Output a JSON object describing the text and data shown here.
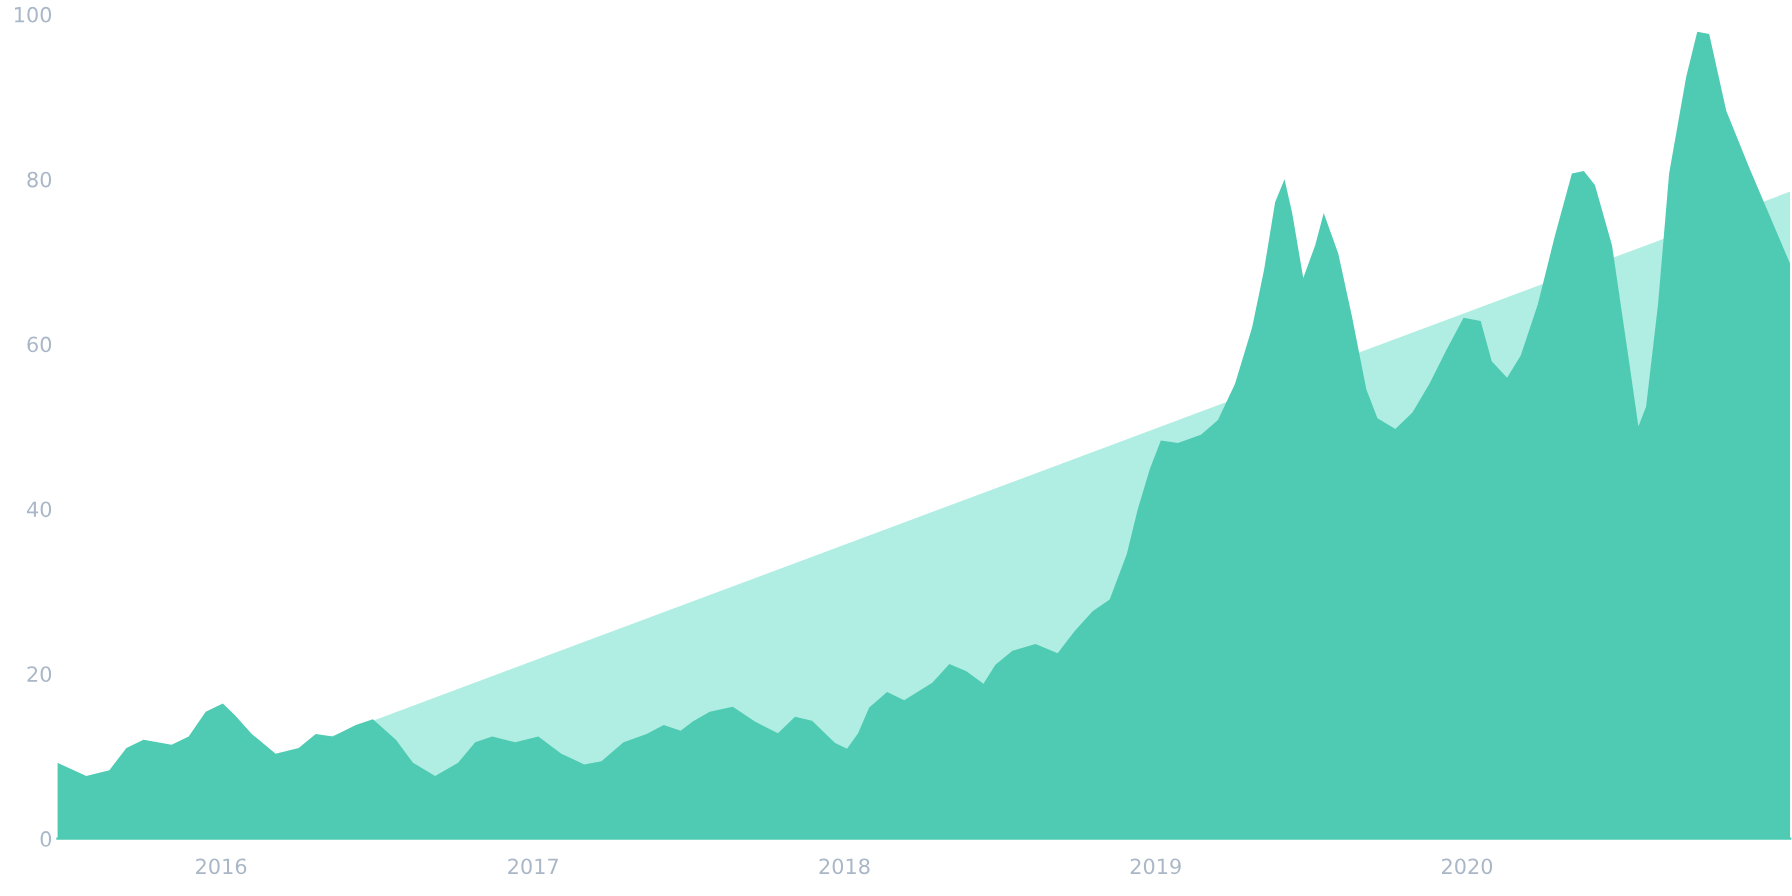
{
  "chart_data": {
    "type": "area",
    "series": [
      {
        "color": "#b0ede2",
        "x": [
          "2015-06-23",
          "2021-01-14"
        ],
        "values": [
          0,
          78.5
        ]
      },
      {
        "color": "#4ecbb2",
        "x": [
          "2015-06-23",
          "2015-07-27",
          "2015-08-23",
          "2015-09-12",
          "2015-10-02",
          "2015-11-04",
          "2015-11-24",
          "2015-12-14",
          "2016-01-03",
          "2016-01-17",
          "2016-02-06",
          "2016-03-05",
          "2016-04-01",
          "2016-04-21",
          "2016-05-11",
          "2016-06-07",
          "2016-06-27",
          "2016-07-24",
          "2016-08-13",
          "2016-09-08",
          "2016-10-05",
          "2016-10-25",
          "2016-11-14",
          "2016-12-11",
          "2017-01-07",
          "2017-02-03",
          "2017-03-02",
          "2017-03-22",
          "2017-04-17",
          "2017-05-14",
          "2017-06-03",
          "2017-06-23",
          "2017-07-07",
          "2017-07-27",
          "2017-08-23",
          "2017-09-18",
          "2017-10-15",
          "2017-11-04",
          "2017-11-24",
          "2017-12-21",
          "2018-01-04",
          "2018-01-17",
          "2018-01-30",
          "2018-02-20",
          "2018-03-12",
          "2018-04-14",
          "2018-05-04",
          "2018-05-24",
          "2018-06-13",
          "2018-06-27",
          "2018-07-17",
          "2018-08-13",
          "2018-09-08",
          "2018-09-28",
          "2018-10-19",
          "2018-11-08",
          "2018-11-28",
          "2018-12-11",
          "2018-12-25",
          "2019-01-07",
          "2019-01-27",
          "2019-02-23",
          "2019-03-15",
          "2019-04-04",
          "2019-04-24",
          "2019-05-08",
          "2019-05-21",
          "2019-06-01",
          "2019-06-10",
          "2019-06-23",
          "2019-07-07",
          "2019-07-17",
          "2019-08-03",
          "2019-08-19",
          "2019-09-05",
          "2019-09-18",
          "2019-10-09",
          "2019-10-29",
          "2019-11-18",
          "2019-12-08",
          "2019-12-28",
          "2020-01-17",
          "2020-01-30",
          "2020-02-17",
          "2020-03-04",
          "2020-03-24",
          "2020-04-13",
          "2020-05-03",
          "2020-05-17",
          "2020-05-30",
          "2020-06-19",
          "2020-07-09",
          "2020-07-20",
          "2020-07-29",
          "2020-08-12",
          "2020-08-25",
          "2020-09-14",
          "2020-09-27",
          "2020-10-11",
          "2020-10-31",
          "2020-11-27",
          "2021-01-14"
        ],
        "values": [
          9.2,
          7.6,
          8.3,
          11,
          12,
          11.4,
          12.4,
          15.4,
          16.4,
          15,
          12.7,
          10.3,
          11,
          12.7,
          12.4,
          13.8,
          14.5,
          12,
          9.2,
          7.6,
          9.2,
          11.7,
          12.4,
          11.7,
          12.4,
          10.3,
          9,
          9.4,
          11.7,
          12.7,
          13.8,
          13.1,
          14.2,
          15.4,
          16,
          14.2,
          12.8,
          14.8,
          14.3,
          11.6,
          10.9,
          12.8,
          15.9,
          17.8,
          16.8,
          18.9,
          21.2,
          20.3,
          18.8,
          21.1,
          22.8,
          23.6,
          22.5,
          25.2,
          27.6,
          29,
          34.5,
          40,
          44.8,
          48.3,
          48,
          49,
          50.8,
          55.2,
          62,
          69,
          77.2,
          80,
          75.9,
          68,
          72,
          75.9,
          71,
          63.4,
          54.5,
          51,
          49.7,
          51.7,
          55.2,
          59.3,
          63.2,
          62.8,
          57.9,
          55.9,
          58.6,
          64.8,
          73.1,
          80.7,
          81,
          79.3,
          72,
          57.9,
          50,
          52.4,
          64.8,
          80.7,
          92.4,
          97.9,
          97.6,
          88.3,
          81.4,
          69.7
        ]
      }
    ],
    "xlim": [
      "2015-06-23",
      "2021-01-14"
    ],
    "xticks": [
      {
        "value": "2016",
        "label": "2016"
      },
      {
        "value": "2017",
        "label": "2017"
      },
      {
        "value": "2018",
        "label": "2018"
      },
      {
        "value": "2019",
        "label": "2019"
      },
      {
        "value": "2020",
        "label": "2020"
      }
    ],
    "ylim": [
      0,
      100
    ],
    "yticks": [
      0,
      20,
      40,
      60,
      80,
      100
    ],
    "grid": false
  }
}
